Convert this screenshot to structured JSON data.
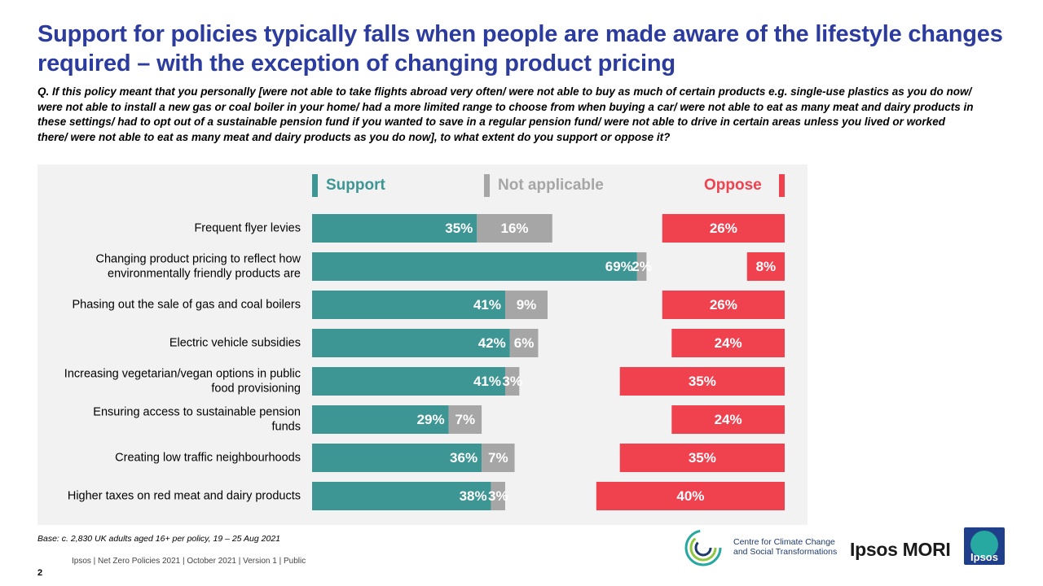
{
  "title": "Support for policies typically falls when people are made aware of the lifestyle changes required – with the exception of changing product pricing",
  "question": "Q. If this policy meant that you personally [were not able to take flights abroad very often/ were not able to buy as much of certain products e.g. single-use plastics as you do now/ were not able to install a new gas or coal boiler in your home/ had a more limited range to choose from when buying a car/ were not able to eat as many meat and dairy products in these settings/ had to opt out of a sustainable pension fund if you wanted to save in a regular pension fund/ were not able to drive in certain areas unless you lived or worked there/ were not able to eat as many meat and dairy products as you do now], to what extent do you support or oppose it?",
  "legend": {
    "support": "Support",
    "not_applicable": "Not applicable",
    "oppose": "Oppose"
  },
  "colors": {
    "support": "#3d9594",
    "not_applicable": "#a6a6a6",
    "oppose": "#f0414f",
    "title": "#2c3b9e",
    "panel": "#f2f2f2"
  },
  "chart_data": {
    "type": "bar",
    "orientation": "horizontal",
    "stacked": true,
    "categories": [
      "Frequent flyer levies",
      "Changing product pricing to reflect how environmentally friendly products are",
      "Phasing out the sale of gas and coal boilers",
      "Electric vehicle subsidies",
      "Increasing vegetarian/vegan options in public food provisioning",
      "Ensuring access to sustainable pension funds",
      "Creating low traffic neighbourhoods",
      "Higher taxes on red meat and dairy products"
    ],
    "category_lines": [
      [
        "Frequent flyer levies"
      ],
      [
        "Changing product pricing to reflect how",
        "environmentally friendly products are"
      ],
      [
        "Phasing out the sale of gas and coal boilers"
      ],
      [
        "Electric vehicle subsidies"
      ],
      [
        "Increasing vegetarian/vegan options in public",
        "food provisioning"
      ],
      [
        "Ensuring access to sustainable pension",
        "funds"
      ],
      [
        "Creating low traffic neighbourhoods"
      ],
      [
        "Higher taxes on red meat and dairy products"
      ]
    ],
    "series": [
      {
        "name": "Support",
        "values": [
          35,
          69,
          41,
          42,
          41,
          29,
          36,
          38
        ],
        "labels": [
          "35%",
          "69%",
          "41%",
          "42%",
          "41%",
          "29%",
          "36%",
          "38%"
        ]
      },
      {
        "name": "Not applicable",
        "values": [
          16,
          2,
          9,
          6,
          3,
          7,
          7,
          3
        ],
        "labels": [
          "16%",
          "2%",
          "9%",
          "6%",
          "3%",
          "7%",
          "7%",
          "3%"
        ]
      },
      {
        "name": "Oppose",
        "values": [
          26,
          8,
          26,
          24,
          35,
          24,
          35,
          40
        ],
        "labels": [
          "26%",
          "8%",
          "26%",
          "24%",
          "35%",
          "24%",
          "35%",
          "40%"
        ]
      }
    ],
    "oppose_alignment": "right",
    "legend_position": "top",
    "grid": false
  },
  "base_note": "Base: c. 2,830 UK adults aged 16+ per policy, 19 – 25 Aug 2021",
  "footer": "Ipsos | Net Zero Policies 2021 | October 2021 | Version 1 | Public",
  "page_number": "2",
  "logos": {
    "c3st_line1": "Centre for Climate Change",
    "c3st_line2": "and Social Transformations",
    "ipsos_mori": "Ipsos MORI",
    "ipsos": "Ipsos"
  }
}
